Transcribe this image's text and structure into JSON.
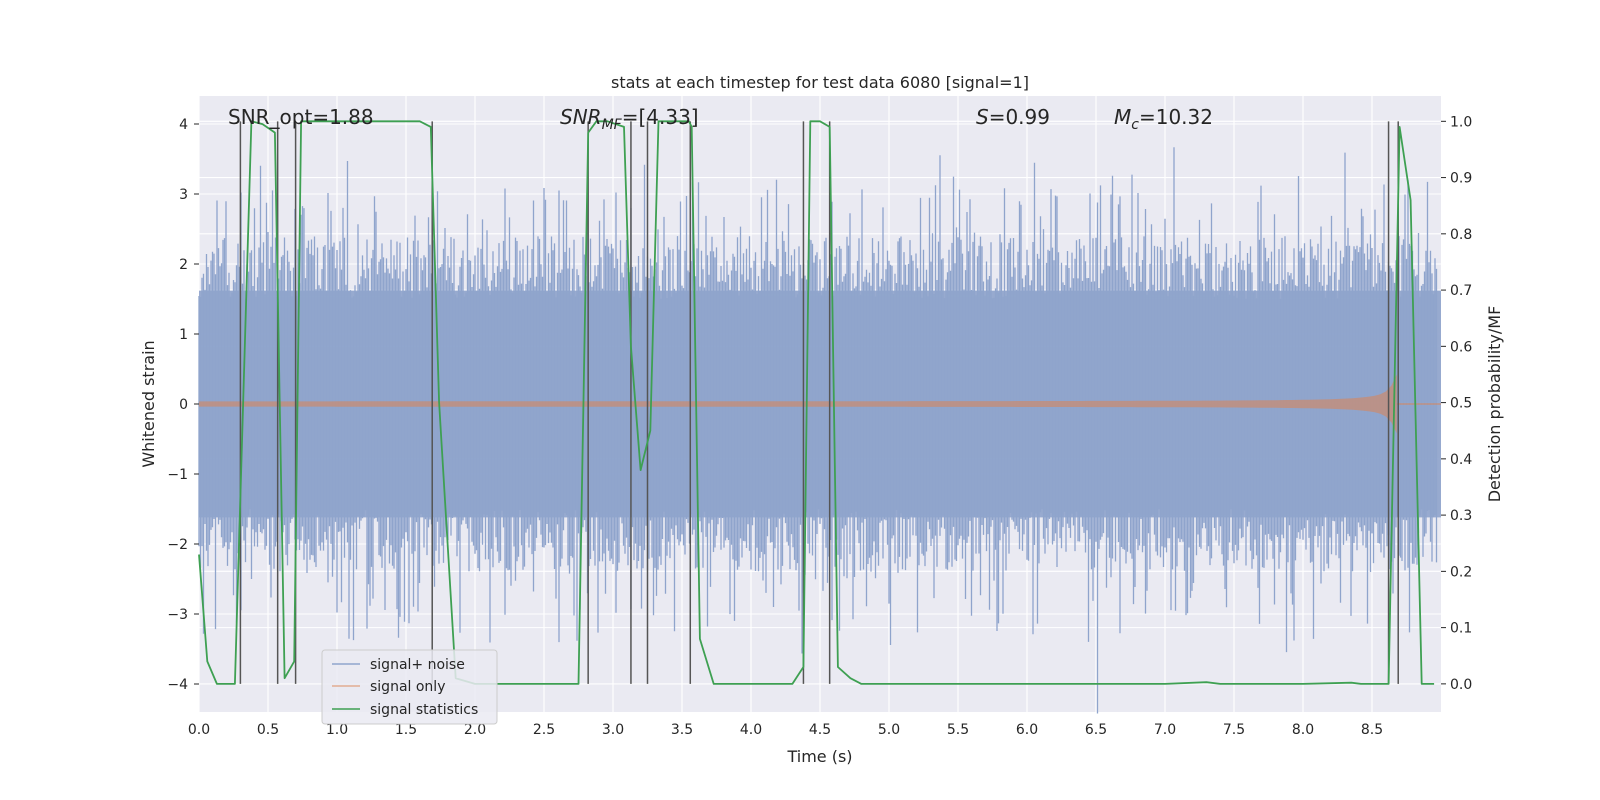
{
  "chart_data": {
    "type": "line",
    "title": "stats at each timestep for test data 6080 [signal=1]",
    "xlabel": "Time (s)",
    "ylabel_left": "Whitened strain",
    "ylabel_right": "Detection probability/MF",
    "xlim": [
      0.0,
      9.0
    ],
    "ylim_left": [
      -4.4,
      4.4
    ],
    "ylim_right": [
      -0.05,
      1.045
    ],
    "x_ticks": [
      0.0,
      0.5,
      1.0,
      1.5,
      2.0,
      2.5,
      3.0,
      3.5,
      4.0,
      4.5,
      5.0,
      5.5,
      6.0,
      6.5,
      7.0,
      7.5,
      8.0,
      8.5
    ],
    "x_tick_labels": [
      "0.0",
      "0.5",
      "1.0",
      "1.5",
      "2.0",
      "2.5",
      "3.0",
      "3.5",
      "4.0",
      "4.5",
      "5.0",
      "5.5",
      "6.0",
      "6.5",
      "7.0",
      "7.5",
      "8.0",
      "8.5"
    ],
    "y_left_ticks": [
      4,
      3,
      2,
      1,
      0,
      -1,
      -2,
      -3,
      -4
    ],
    "y_left_tick_labels": [
      "4",
      "3",
      "2",
      "1",
      "0",
      "−1",
      "−2",
      "−3",
      "−4"
    ],
    "y_right_ticks": [
      1.0,
      0.9,
      0.8,
      0.7,
      0.6,
      0.5,
      0.4,
      0.3,
      0.2,
      0.1,
      0.0
    ],
    "y_right_tick_labels": [
      "1.0",
      "0.9",
      "0.8",
      "0.7",
      "0.6",
      "0.5",
      "0.4",
      "0.3",
      "0.2",
      "0.1",
      "0.0"
    ],
    "grid": true,
    "annotations": {
      "snr_opt": "SNR_opt=1.88",
      "snr_mf_var": "SNR",
      "snr_mf_sub": "MF",
      "snr_mf_value": "=[4.33]",
      "s_var": "S",
      "s_value": "=0.99",
      "mc_var": "M",
      "mc_sub": "c",
      "mc_value": "=10.32"
    },
    "legend": {
      "location": "lower-left",
      "entries": [
        "signal+ noise",
        "signal only",
        "signal statistics"
      ]
    },
    "colors": {
      "noise": "#8fa4cc",
      "signal": "#dd8452",
      "stats": "#3ea052",
      "vlines": "#555555",
      "background": "#eaeaf2"
    },
    "series": [
      {
        "name": "signal statistics",
        "axis": "right",
        "x": [
          0.0,
          0.06,
          0.13,
          0.26,
          0.38,
          0.46,
          0.55,
          0.62,
          0.69,
          0.74,
          0.8,
          1.0,
          1.2,
          1.4,
          1.6,
          1.68,
          1.74,
          1.86,
          2.0,
          2.4,
          2.75,
          2.82,
          2.88,
          2.96,
          3.08,
          3.13,
          3.2,
          3.27,
          3.33,
          3.45,
          3.55,
          3.57,
          3.63,
          3.73,
          4.0,
          4.3,
          4.38,
          4.43,
          4.5,
          4.57,
          4.63,
          4.72,
          4.8,
          5.0,
          5.5,
          6.0,
          7.0,
          7.3,
          7.4,
          7.6,
          8.0,
          8.35,
          8.42,
          8.62,
          8.7,
          8.78,
          8.86,
          8.95
        ],
        "y": [
          0.23,
          0.04,
          0.0,
          0.0,
          1.0,
          0.995,
          0.98,
          0.01,
          0.04,
          1.0,
          1.0,
          1.0,
          1.0,
          1.0,
          1.0,
          0.99,
          0.5,
          0.01,
          0.0,
          0.0,
          0.0,
          0.98,
          1.0,
          1.0,
          0.99,
          0.6,
          0.38,
          0.45,
          1.0,
          1.0,
          1.0,
          0.99,
          0.08,
          0.0,
          0.0,
          0.0,
          0.03,
          1.0,
          1.0,
          0.99,
          0.03,
          0.01,
          0.0,
          0.0,
          0.0,
          0.0,
          0.0,
          0.003,
          0.0,
          0.0,
          0.0,
          0.002,
          0.0,
          0.0,
          0.99,
          0.86,
          0.0,
          0.0
        ]
      }
    ],
    "vertical_lines_x": [
      0.3,
      0.57,
      0.7,
      1.69,
      2.82,
      3.13,
      3.25,
      3.56,
      4.38,
      4.57,
      8.62,
      8.69
    ]
  }
}
